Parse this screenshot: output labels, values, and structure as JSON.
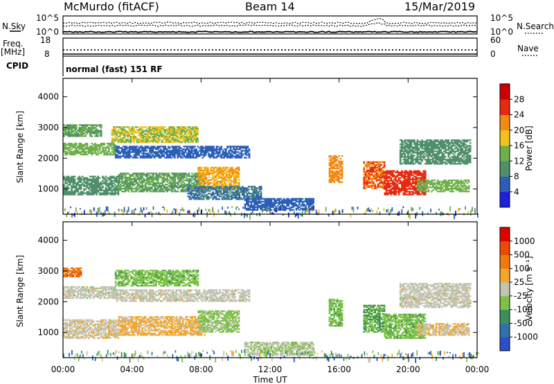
{
  "header": {
    "station": "McMurdo (fitACF)",
    "beam": "Beam 14",
    "date": "15/Mar/2019"
  },
  "status_panels": {
    "noise": {
      "left_label": "N.Sky",
      "right_label": "N.Search",
      "left_ticks": [
        "10^5",
        "10^0"
      ],
      "right_ticks": [
        "10^5",
        "10^0"
      ]
    },
    "freq": {
      "left_label_line1": "Freq.",
      "left_label_line2": "[MHz]",
      "right_label": "Nave",
      "left_ticks": [
        "18",
        "8"
      ],
      "right_ticks": [
        "60",
        "0"
      ]
    },
    "cpid": {
      "label": "CPID",
      "mode_text": "normal (fast) 151 RF"
    }
  },
  "chart_data": [
    {
      "type": "heatmap",
      "title": "",
      "quantity": "Power",
      "ylabel": "Slant Range [km]",
      "xlabel": "",
      "x_ticks": [
        "00:00",
        "04:00",
        "08:00",
        "12:00",
        "16:00",
        "20:00",
        "00:00"
      ],
      "x_range_hours": [
        0,
        24
      ],
      "y_ticks": [
        "1000",
        "2000",
        "3000",
        "4000"
      ],
      "ylim": [
        180,
        4600
      ],
      "colorbar": {
        "label": "Power [dB]",
        "tick_labels": [
          "4",
          "8",
          "12",
          "16",
          "20",
          "24",
          "28"
        ],
        "range": [
          0,
          32
        ],
        "colors": [
          "#1f1fe0",
          "#2b5fb8",
          "#4f8f6a",
          "#6fb04a",
          "#f2c21c",
          "#f48a14",
          "#e62a0f",
          "#cc0000"
        ]
      },
      "regions": [
        {
          "t": [
            0.0,
            2.2
          ],
          "r": [
            2700,
            3100
          ],
          "value": 12
        },
        {
          "t": [
            0.0,
            3.0
          ],
          "r": [
            2100,
            2500
          ],
          "value": 14
        },
        {
          "t": [
            0.0,
            3.2
          ],
          "r": [
            800,
            1400
          ],
          "value": 10
        },
        {
          "t": [
            2.8,
            7.8
          ],
          "r": [
            2500,
            3000
          ],
          "value": 16
        },
        {
          "t": [
            3.0,
            10.8
          ],
          "r": [
            2000,
            2400
          ],
          "value": 6
        },
        {
          "t": [
            3.2,
            8.2
          ],
          "r": [
            900,
            1500
          ],
          "value": 12
        },
        {
          "t": [
            7.8,
            10.2
          ],
          "r": [
            1000,
            1700
          ],
          "value": 20
        },
        {
          "t": [
            7.2,
            11.5
          ],
          "r": [
            650,
            1100
          ],
          "value": 8
        },
        {
          "t": [
            10.5,
            14.5
          ],
          "r": [
            300,
            700
          ],
          "value": 6
        },
        {
          "t": [
            15.4,
            16.2
          ],
          "r": [
            1200,
            2100
          ],
          "value": 22
        },
        {
          "t": [
            17.4,
            18.6
          ],
          "r": [
            1000,
            1900
          ],
          "value": 24
        },
        {
          "t": [
            18.6,
            21.0
          ],
          "r": [
            800,
            1600
          ],
          "value": 26
        },
        {
          "t": [
            19.5,
            23.6
          ],
          "r": [
            1800,
            2600
          ],
          "value": 10
        },
        {
          "t": [
            20.5,
            23.5
          ],
          "r": [
            900,
            1300
          ],
          "value": 14
        }
      ]
    },
    {
      "type": "heatmap",
      "title": "",
      "quantity": "Velocity",
      "ylabel": "Slant Range [km]",
      "xlabel": "Time UT",
      "x_ticks": [
        "00:00",
        "04:00",
        "08:00",
        "12:00",
        "16:00",
        "20:00",
        "00:00"
      ],
      "x_range_hours": [
        0,
        24
      ],
      "y_ticks": [
        "1000",
        "2000",
        "3000",
        "4000"
      ],
      "ylim": [
        180,
        4600
      ],
      "colorbar": {
        "label": "Velocity [m s⁻¹]",
        "tick_labels": [
          "1000",
          "500",
          "100",
          "25",
          "-25",
          "-100",
          "-500",
          "-1000"
        ],
        "range": [
          -1200,
          1200
        ],
        "colors": [
          "#2b4fc8",
          "#2f72a8",
          "#3f8f5a",
          "#7dc246",
          "#c4c4b4",
          "#f4a62a",
          "#f07a10",
          "#ea4a08",
          "#e00000"
        ]
      },
      "regions": [
        {
          "t": [
            0.0,
            1.0
          ],
          "r": [
            2800,
            3100
          ],
          "value": 600
        },
        {
          "t": [
            0.0,
            3.0
          ],
          "r": [
            2100,
            2500
          ],
          "value": 0
        },
        {
          "t": [
            0.0,
            3.2
          ],
          "r": [
            800,
            1400
          ],
          "value": 50
        },
        {
          "t": [
            3.0,
            7.8
          ],
          "r": [
            2500,
            3000
          ],
          "value": -300
        },
        {
          "t": [
            3.0,
            10.8
          ],
          "r": [
            2000,
            2400
          ],
          "value": 0
        },
        {
          "t": [
            3.2,
            8.2
          ],
          "r": [
            900,
            1500
          ],
          "value": 200
        },
        {
          "t": [
            7.8,
            10.2
          ],
          "r": [
            1000,
            1700
          ],
          "value": -200
        },
        {
          "t": [
            10.5,
            14.5
          ],
          "r": [
            250,
            700
          ],
          "value": -100
        },
        {
          "t": [
            15.4,
            16.2
          ],
          "r": [
            1200,
            2100
          ],
          "value": -300
        },
        {
          "t": [
            17.4,
            18.6
          ],
          "r": [
            1000,
            1900
          ],
          "value": -400
        },
        {
          "t": [
            18.6,
            21.0
          ],
          "r": [
            800,
            1600
          ],
          "value": -300
        },
        {
          "t": [
            19.5,
            23.6
          ],
          "r": [
            1800,
            2600
          ],
          "value": 0
        },
        {
          "t": [
            20.5,
            23.5
          ],
          "r": [
            900,
            1300
          ],
          "value": 100
        }
      ]
    }
  ]
}
